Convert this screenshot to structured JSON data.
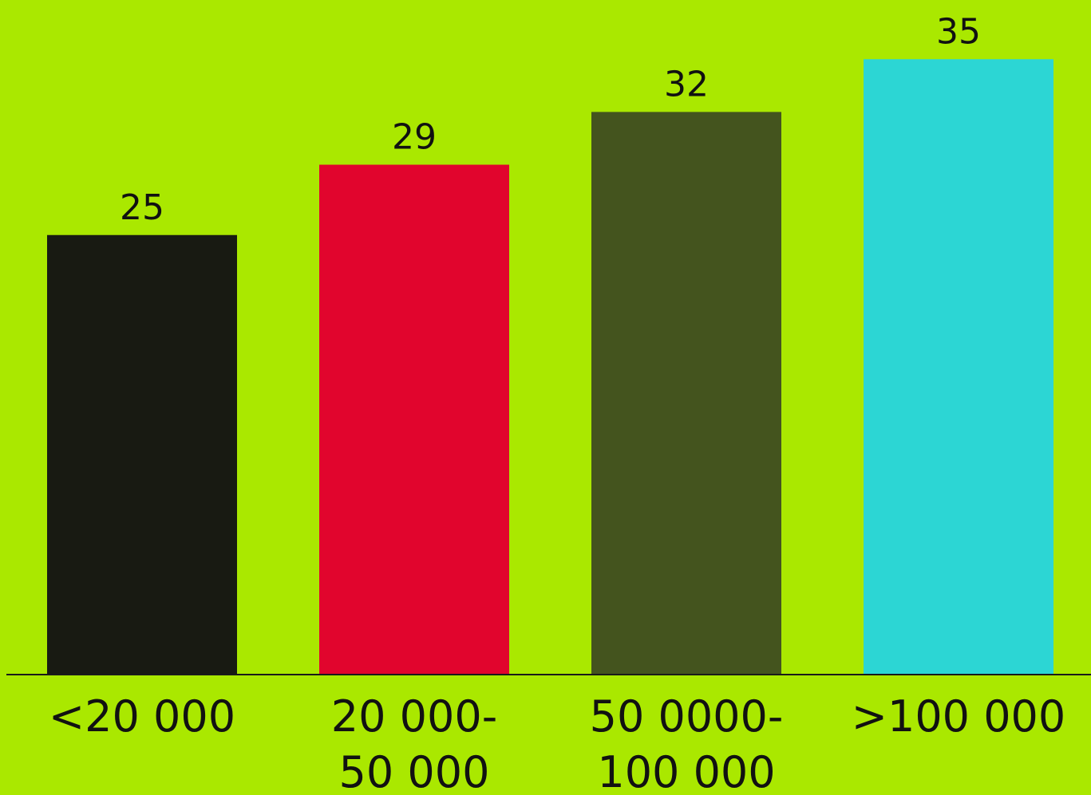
{
  "colors": {
    "background": "#aae800",
    "axis": "#1a1a1a"
  },
  "chart_data": {
    "type": "bar",
    "title": "",
    "xlabel": "",
    "ylabel": "",
    "ylim": [
      0,
      35
    ],
    "grid": false,
    "legend": "none",
    "categories": [
      [
        "<20 000"
      ],
      [
        "20 000-",
        "50 000"
      ],
      [
        "50 0000-",
        "100 000"
      ],
      [
        ">100 000"
      ]
    ],
    "values": [
      25,
      29,
      32,
      35
    ],
    "bar_colors": [
      "#181a12",
      "#e1052d",
      "#44541e",
      "#2cd6d4"
    ]
  }
}
